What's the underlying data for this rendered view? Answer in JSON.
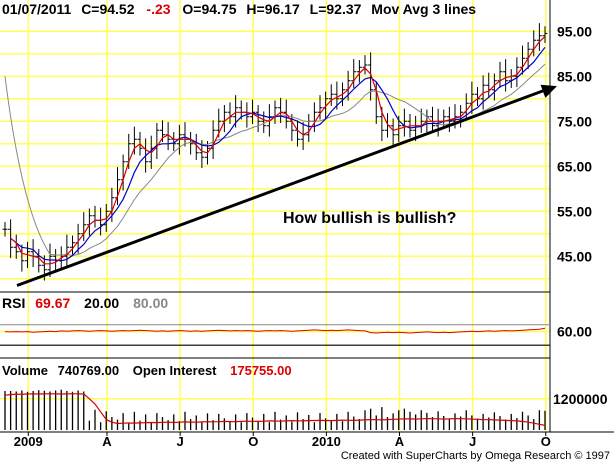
{
  "header": {
    "date": "01/07/2011",
    "close": "C=94.52",
    "change": "-.23",
    "open": "O=94.75",
    "high": "H=96.17",
    "low": "L=92.37",
    "study": "Mov Avg 3 lines"
  },
  "colors": {
    "grid": "#ffff55",
    "price_bar": "#000000",
    "ma_fast": "#dd0000",
    "ma_mid": "#0000cc",
    "ma_slow": "#888888",
    "rsi_line": "#dd0000",
    "volume_bar": "#000000",
    "open_interest": "#dd0000",
    "rsi_value": "#dd0000",
    "rsi_80": "#888888",
    "trend_arrow": "#000000"
  },
  "annotation": "How bullish is bullish?",
  "credit": "Created with SuperCharts by Omega Research © 1997",
  "chart_data": [
    {
      "type": "line",
      "panel": "price",
      "chart_type_detail": "weekly OHLC bars with 3 moving averages",
      "y_ticks": [
        "95.00",
        "85.00",
        "75.00",
        "65.00",
        "55.00",
        "45.00"
      ],
      "ylim": [
        37.5,
        97.5
      ],
      "x_ticks": [
        "2009",
        "A",
        "J",
        "O",
        "2010",
        "A",
        "J",
        "O"
      ],
      "grid": true,
      "trendline": {
        "from": [
          0,
          38.5
        ],
        "to": [
          108,
          82.8
        ],
        "arrow": "end"
      },
      "closes": [
        51,
        47,
        46,
        44,
        46,
        45,
        43,
        42,
        45,
        44,
        45,
        47,
        48,
        50,
        52,
        54,
        53,
        52,
        55,
        58,
        62,
        66,
        70,
        71,
        69,
        66,
        69,
        73,
        72,
        71,
        70,
        72,
        71,
        70,
        68,
        67,
        69,
        73,
        75,
        77,
        76,
        78,
        77,
        76,
        77,
        75,
        74,
        76,
        78,
        77,
        75,
        73,
        71,
        72,
        75,
        77,
        78,
        80,
        81,
        80,
        82,
        84,
        86,
        87,
        87.5,
        82,
        76,
        73,
        74,
        72,
        74,
        75,
        73,
        74,
        75,
        76,
        74,
        75,
        76,
        75,
        76,
        77,
        79,
        81,
        80,
        83,
        82,
        84,
        86,
        84,
        85,
        87,
        89,
        91,
        93,
        94,
        94.52
      ],
      "series": [
        {
          "name": "Mov Avg 3 lines - fast",
          "color": "#dd0000"
        },
        {
          "name": "Mov Avg 3 lines - mid",
          "color": "#0000cc"
        },
        {
          "name": "Mov Avg 3 lines - slow",
          "color": "#888888"
        }
      ]
    },
    {
      "type": "line",
      "panel": "rsi",
      "label": "RSI",
      "value": "69.67",
      "lower": "20.00",
      "upper": "80.00",
      "y_ticks": [
        "60.00"
      ],
      "ylim": [
        0,
        100
      ],
      "values": [
        60,
        59,
        60,
        59,
        60,
        58,
        59,
        60,
        61,
        60,
        62,
        61,
        62,
        63,
        62,
        61,
        62,
        63,
        62,
        61,
        62,
        63,
        62,
        63,
        64,
        63,
        62,
        61,
        62,
        61,
        62,
        63,
        62,
        61,
        62,
        61,
        62,
        63,
        64,
        63,
        62,
        63,
        62,
        63,
        62,
        61,
        62,
        63,
        62,
        63,
        62,
        61,
        62,
        63,
        64,
        65,
        64,
        63,
        64,
        63,
        64,
        65,
        64,
        63,
        62,
        57,
        56,
        57,
        58,
        57,
        58,
        57,
        56,
        57,
        58,
        59,
        58,
        57,
        58,
        57,
        58,
        59,
        60,
        61,
        60,
        61,
        62,
        61,
        62,
        63,
        62,
        63,
        64,
        65,
        66,
        67,
        69.67
      ]
    },
    {
      "type": "bar",
      "panel": "volume",
      "label": "Volume",
      "value": "740769.00",
      "oi_label": "Open Interest",
      "oi_value": "175755.00",
      "y_ticks": [
        "1200000"
      ],
      "ylim": [
        0,
        2000000
      ],
      "values": [
        1500000,
        1500000,
        1480000,
        1520000,
        1470000,
        1500000,
        1530000,
        1510000,
        1480000,
        1520000,
        1550000,
        1500000,
        1470000,
        1520000,
        1480000,
        360000,
        780000,
        300000,
        720000,
        500000,
        400000,
        650000,
        280000,
        700000,
        360000,
        600000,
        300000,
        650000,
        500000,
        380000,
        600000,
        340000,
        700000,
        420000,
        560000,
        300000,
        640000,
        380000,
        620000,
        450000,
        340000,
        600000,
        300000,
        650000,
        480000,
        360000,
        620000,
        300000,
        700000,
        400000,
        560000,
        320000,
        680000,
        420000,
        580000,
        300000,
        650000,
        450000,
        380000,
        620000,
        340000,
        700000,
        520000,
        420000,
        760000,
        820000,
        560000,
        880000,
        500000,
        640000,
        760000,
        820000,
        700000,
        600000,
        760000,
        660000,
        500000,
        720000,
        540000,
        420000,
        640000,
        520000,
        760000,
        560000,
        440000,
        620000,
        480000,
        680000,
        540000,
        400000,
        620000,
        460000,
        700000,
        560000,
        420000,
        760000,
        740769
      ],
      "oi_values": [
        1340000,
        1360000,
        1380000,
        1370000,
        1390000,
        1390000,
        1385000,
        1390000,
        1395000,
        1390000,
        1385000,
        1390000,
        1395000,
        1390000,
        1385000,
        1200000,
        1000000,
        700000,
        400000,
        300000,
        250000,
        260000,
        270000,
        265000,
        275000,
        280000,
        290000,
        285000,
        295000,
        300000,
        290000,
        300000,
        310000,
        305000,
        300000,
        310000,
        320000,
        315000,
        320000,
        330000,
        325000,
        320000,
        330000,
        340000,
        335000,
        330000,
        340000,
        350000,
        345000,
        340000,
        350000,
        360000,
        355000,
        350000,
        360000,
        365000,
        370000,
        365000,
        360000,
        370000,
        380000,
        375000,
        370000,
        380000,
        390000,
        400000,
        395000,
        390000,
        400000,
        410000,
        420000,
        430000,
        425000,
        420000,
        430000,
        440000,
        435000,
        430000,
        420000,
        430000,
        440000,
        435000,
        430000,
        420000,
        410000,
        400000,
        395000,
        390000,
        380000,
        370000,
        360000,
        350000,
        330000,
        300000,
        260000,
        220000,
        175755
      ]
    }
  ]
}
